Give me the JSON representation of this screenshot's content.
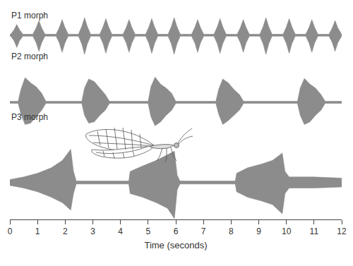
{
  "chart_data": {
    "type": "area",
    "x_label": "Time (seconds)",
    "xlim": [
      0,
      12
    ],
    "xticks": [
      0,
      1,
      2,
      3,
      4,
      5,
      6,
      7,
      8,
      9,
      10,
      11,
      12
    ],
    "ylim": [
      -1,
      1
    ],
    "tick_labels": "x",
    "grid": false,
    "color": "#8c8c8c",
    "series": [
      {
        "name": "P1 morph",
        "x": [
          0,
          0.03,
          0.15,
          0.25,
          0.35,
          0.47,
          0.83,
          0.95,
          1.05,
          1.15,
          1.27,
          1.67,
          1.79,
          1.89,
          1.99,
          2.11,
          2.48,
          2.6,
          2.7,
          2.8,
          2.92,
          3.25,
          3.37,
          3.47,
          3.57,
          3.69,
          4.09,
          4.21,
          4.31,
          4.41,
          4.53,
          4.91,
          5.03,
          5.13,
          5.23,
          5.35,
          5.72,
          5.84,
          5.94,
          6.04,
          6.16,
          6.57,
          6.69,
          6.79,
          6.89,
          7.01,
          7.38,
          7.5,
          7.6,
          7.7,
          7.82,
          8.22,
          8.34,
          8.44,
          8.54,
          8.66,
          9.04,
          9.16,
          9.26,
          9.36,
          9.48,
          9.88,
          10.0,
          10.1,
          10.2,
          10.32,
          10.7,
          10.82,
          10.92,
          11.02,
          11.14,
          11.54,
          11.66,
          11.76,
          11.86,
          11.98,
          12
        ],
        "values": [
          0.04,
          0.05,
          0.28,
          0.55,
          0.28,
          0.05,
          0.05,
          0.38,
          0.75,
          0.38,
          0.05,
          0.05,
          0.4,
          0.8,
          0.4,
          0.05,
          0.05,
          0.45,
          0.9,
          0.45,
          0.05,
          0.05,
          0.43,
          0.85,
          0.43,
          0.05,
          0.05,
          0.4,
          0.8,
          0.4,
          0.05,
          0.05,
          0.43,
          0.85,
          0.43,
          0.05,
          0.05,
          0.45,
          0.9,
          0.45,
          0.05,
          0.05,
          0.4,
          0.8,
          0.4,
          0.05,
          0.05,
          0.43,
          0.85,
          0.43,
          0.05,
          0.05,
          0.4,
          0.8,
          0.4,
          0.05,
          0.05,
          0.45,
          0.9,
          0.45,
          0.05,
          0.05,
          0.43,
          0.85,
          0.43,
          0.05,
          0.05,
          0.4,
          0.8,
          0.4,
          0.05,
          0.05,
          0.38,
          0.75,
          0.38,
          0.05,
          0.04
        ],
        "lower": [
          -0.04,
          -0.05,
          -0.28,
          -0.63,
          -0.28,
          -0.05,
          -0.05,
          -0.38,
          -0.83,
          -0.38,
          -0.05,
          -0.05,
          -0.4,
          -0.88,
          -0.4,
          -0.05,
          -0.05,
          -0.45,
          -0.98,
          -0.45,
          -0.05,
          -0.05,
          -0.43,
          -0.93,
          -0.43,
          -0.05,
          -0.05,
          -0.4,
          -0.88,
          -0.4,
          -0.05,
          -0.05,
          -0.43,
          -0.93,
          -0.43,
          -0.05,
          -0.05,
          -0.45,
          -0.98,
          -0.45,
          -0.05,
          -0.05,
          -0.4,
          -0.88,
          -0.4,
          -0.05,
          -0.05,
          -0.43,
          -0.93,
          -0.43,
          -0.05,
          -0.05,
          -0.4,
          -0.88,
          -0.4,
          -0.05,
          -0.05,
          -0.45,
          -0.98,
          -0.45,
          -0.05,
          -0.05,
          -0.43,
          -0.93,
          -0.43,
          -0.05,
          -0.05,
          -0.4,
          -0.88,
          -0.4,
          -0.05,
          -0.05,
          -0.38,
          -0.83,
          -0.38,
          -0.05,
          -0.04
        ]
      },
      {
        "name": "P2 morph",
        "x": [
          0,
          0.3,
          0.4,
          0.55,
          0.75,
          0.95,
          1.15,
          1.3,
          2.6,
          2.7,
          2.85,
          3.05,
          3.25,
          3.45,
          3.6,
          5.0,
          5.1,
          5.25,
          5.45,
          5.65,
          5.85,
          6.0,
          7.45,
          7.55,
          7.7,
          7.9,
          8.1,
          8.3,
          8.45,
          10.4,
          10.5,
          10.65,
          10.85,
          11.05,
          11.25,
          11.4,
          12
        ],
        "values": [
          0.04,
          0.04,
          0.5,
          0.95,
          0.75,
          0.6,
          0.35,
          0.04,
          0.04,
          0.55,
          0.9,
          0.8,
          0.55,
          0.3,
          0.04,
          0.04,
          0.6,
          0.97,
          0.7,
          0.55,
          0.35,
          0.04,
          0.04,
          0.5,
          0.9,
          0.75,
          0.5,
          0.3,
          0.04,
          0.04,
          0.55,
          0.92,
          0.7,
          0.55,
          0.3,
          0.04,
          0.04
        ],
        "lower": [
          -0.04,
          -0.04,
          -0.45,
          -0.85,
          -0.8,
          -0.55,
          -0.3,
          -0.04,
          -0.04,
          -0.5,
          -0.8,
          -0.75,
          -0.5,
          -0.3,
          -0.04,
          -0.04,
          -0.55,
          -0.9,
          -0.75,
          -0.5,
          -0.3,
          -0.04,
          -0.04,
          -0.45,
          -0.85,
          -0.7,
          -0.5,
          -0.3,
          -0.04,
          -0.04,
          -0.5,
          -0.85,
          -0.75,
          -0.5,
          -0.3,
          -0.04,
          -0.04
        ]
      },
      {
        "name": "P3 morph",
        "x": [
          0,
          0.5,
          1.0,
          1.5,
          1.9,
          2.2,
          2.3,
          2.4,
          3.3,
          4.3,
          4.35,
          4.8,
          5.3,
          5.7,
          5.95,
          6.05,
          6.15,
          7.3,
          8.15,
          8.2,
          8.6,
          9.1,
          9.5,
          9.85,
          9.95,
          10.1,
          11.0,
          12
        ],
        "values": [
          0.08,
          0.15,
          0.25,
          0.4,
          0.6,
          0.9,
          0.3,
          0.04,
          0.04,
          0.04,
          0.3,
          0.45,
          0.6,
          0.75,
          0.85,
          0.2,
          0.04,
          0.04,
          0.04,
          0.25,
          0.4,
          0.5,
          0.6,
          0.8,
          0.3,
          0.15,
          0.15,
          0.12
        ],
        "lower": [
          -0.08,
          -0.15,
          -0.25,
          -0.4,
          -0.55,
          -0.75,
          -0.3,
          -0.04,
          -0.04,
          -0.04,
          -0.3,
          -0.4,
          -0.55,
          -0.7,
          -0.98,
          -0.2,
          -0.04,
          -0.04,
          -0.04,
          -0.25,
          -0.4,
          -0.5,
          -0.6,
          -0.85,
          -0.3,
          -0.15,
          -0.15,
          -0.12
        ]
      }
    ]
  }
}
